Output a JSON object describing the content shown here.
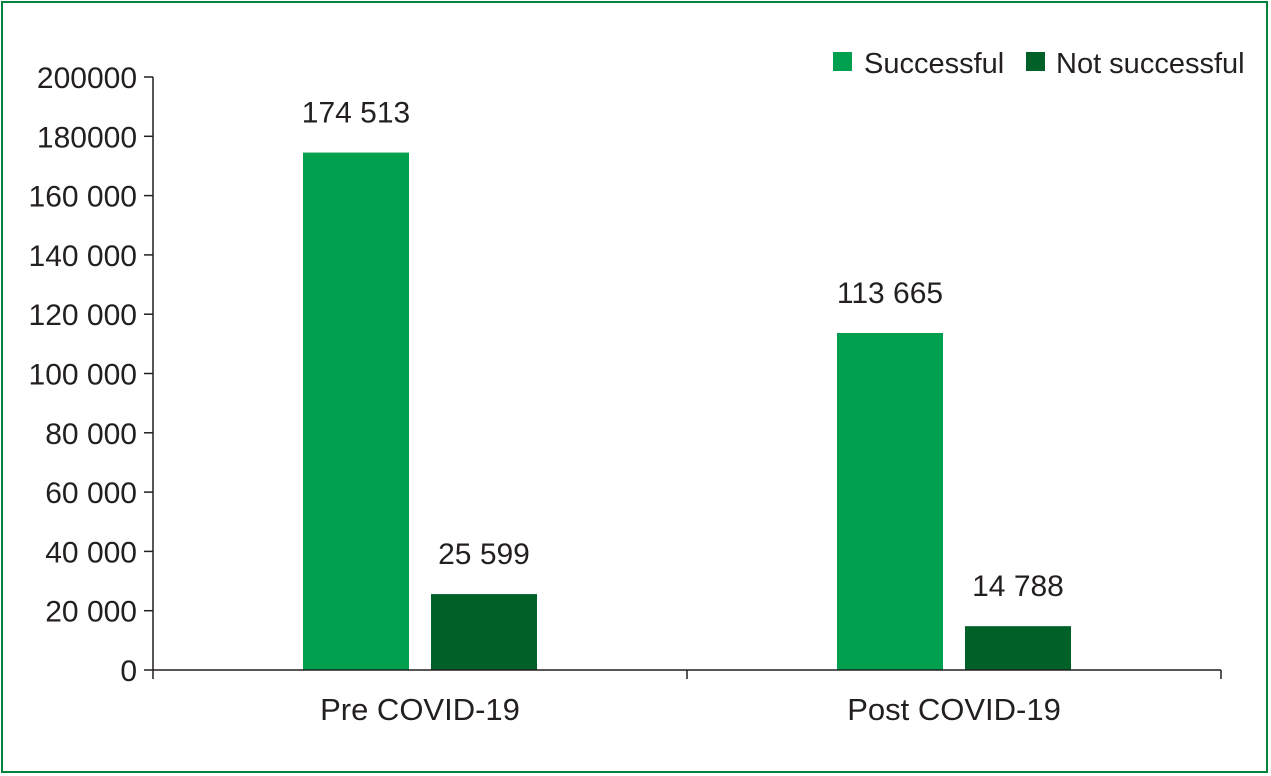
{
  "chart_data": {
    "type": "bar",
    "categories": [
      "Pre COVID-19",
      "Post COVID-19"
    ],
    "series": [
      {
        "name": "Successful",
        "color": "#00a04e",
        "values": [
          174513,
          113665
        ],
        "labels": [
          "174 513",
          "113 665"
        ]
      },
      {
        "name": "Not successful",
        "color": "#006128",
        "values": [
          25599,
          14788
        ],
        "labels": [
          "25 599",
          "14 788"
        ]
      }
    ],
    "ylim": [
      0,
      200000
    ],
    "yticks": [
      {
        "value": 0,
        "label": "0"
      },
      {
        "value": 20000,
        "label": "20 000"
      },
      {
        "value": 40000,
        "label": "40 000"
      },
      {
        "value": 60000,
        "label": "60 000"
      },
      {
        "value": 80000,
        "label": "80 000"
      },
      {
        "value": 100000,
        "label": "100 000"
      },
      {
        "value": 120000,
        "label": "120 000"
      },
      {
        "value": 140000,
        "label": "140 000"
      },
      {
        "value": 160000,
        "label": "160 000"
      },
      {
        "value": 180000,
        "label": "180000"
      },
      {
        "value": 200000,
        "label": "200000"
      }
    ],
    "legend_position": "top-right",
    "frame_color": "#00843d",
    "axis_color": "#231f20"
  }
}
